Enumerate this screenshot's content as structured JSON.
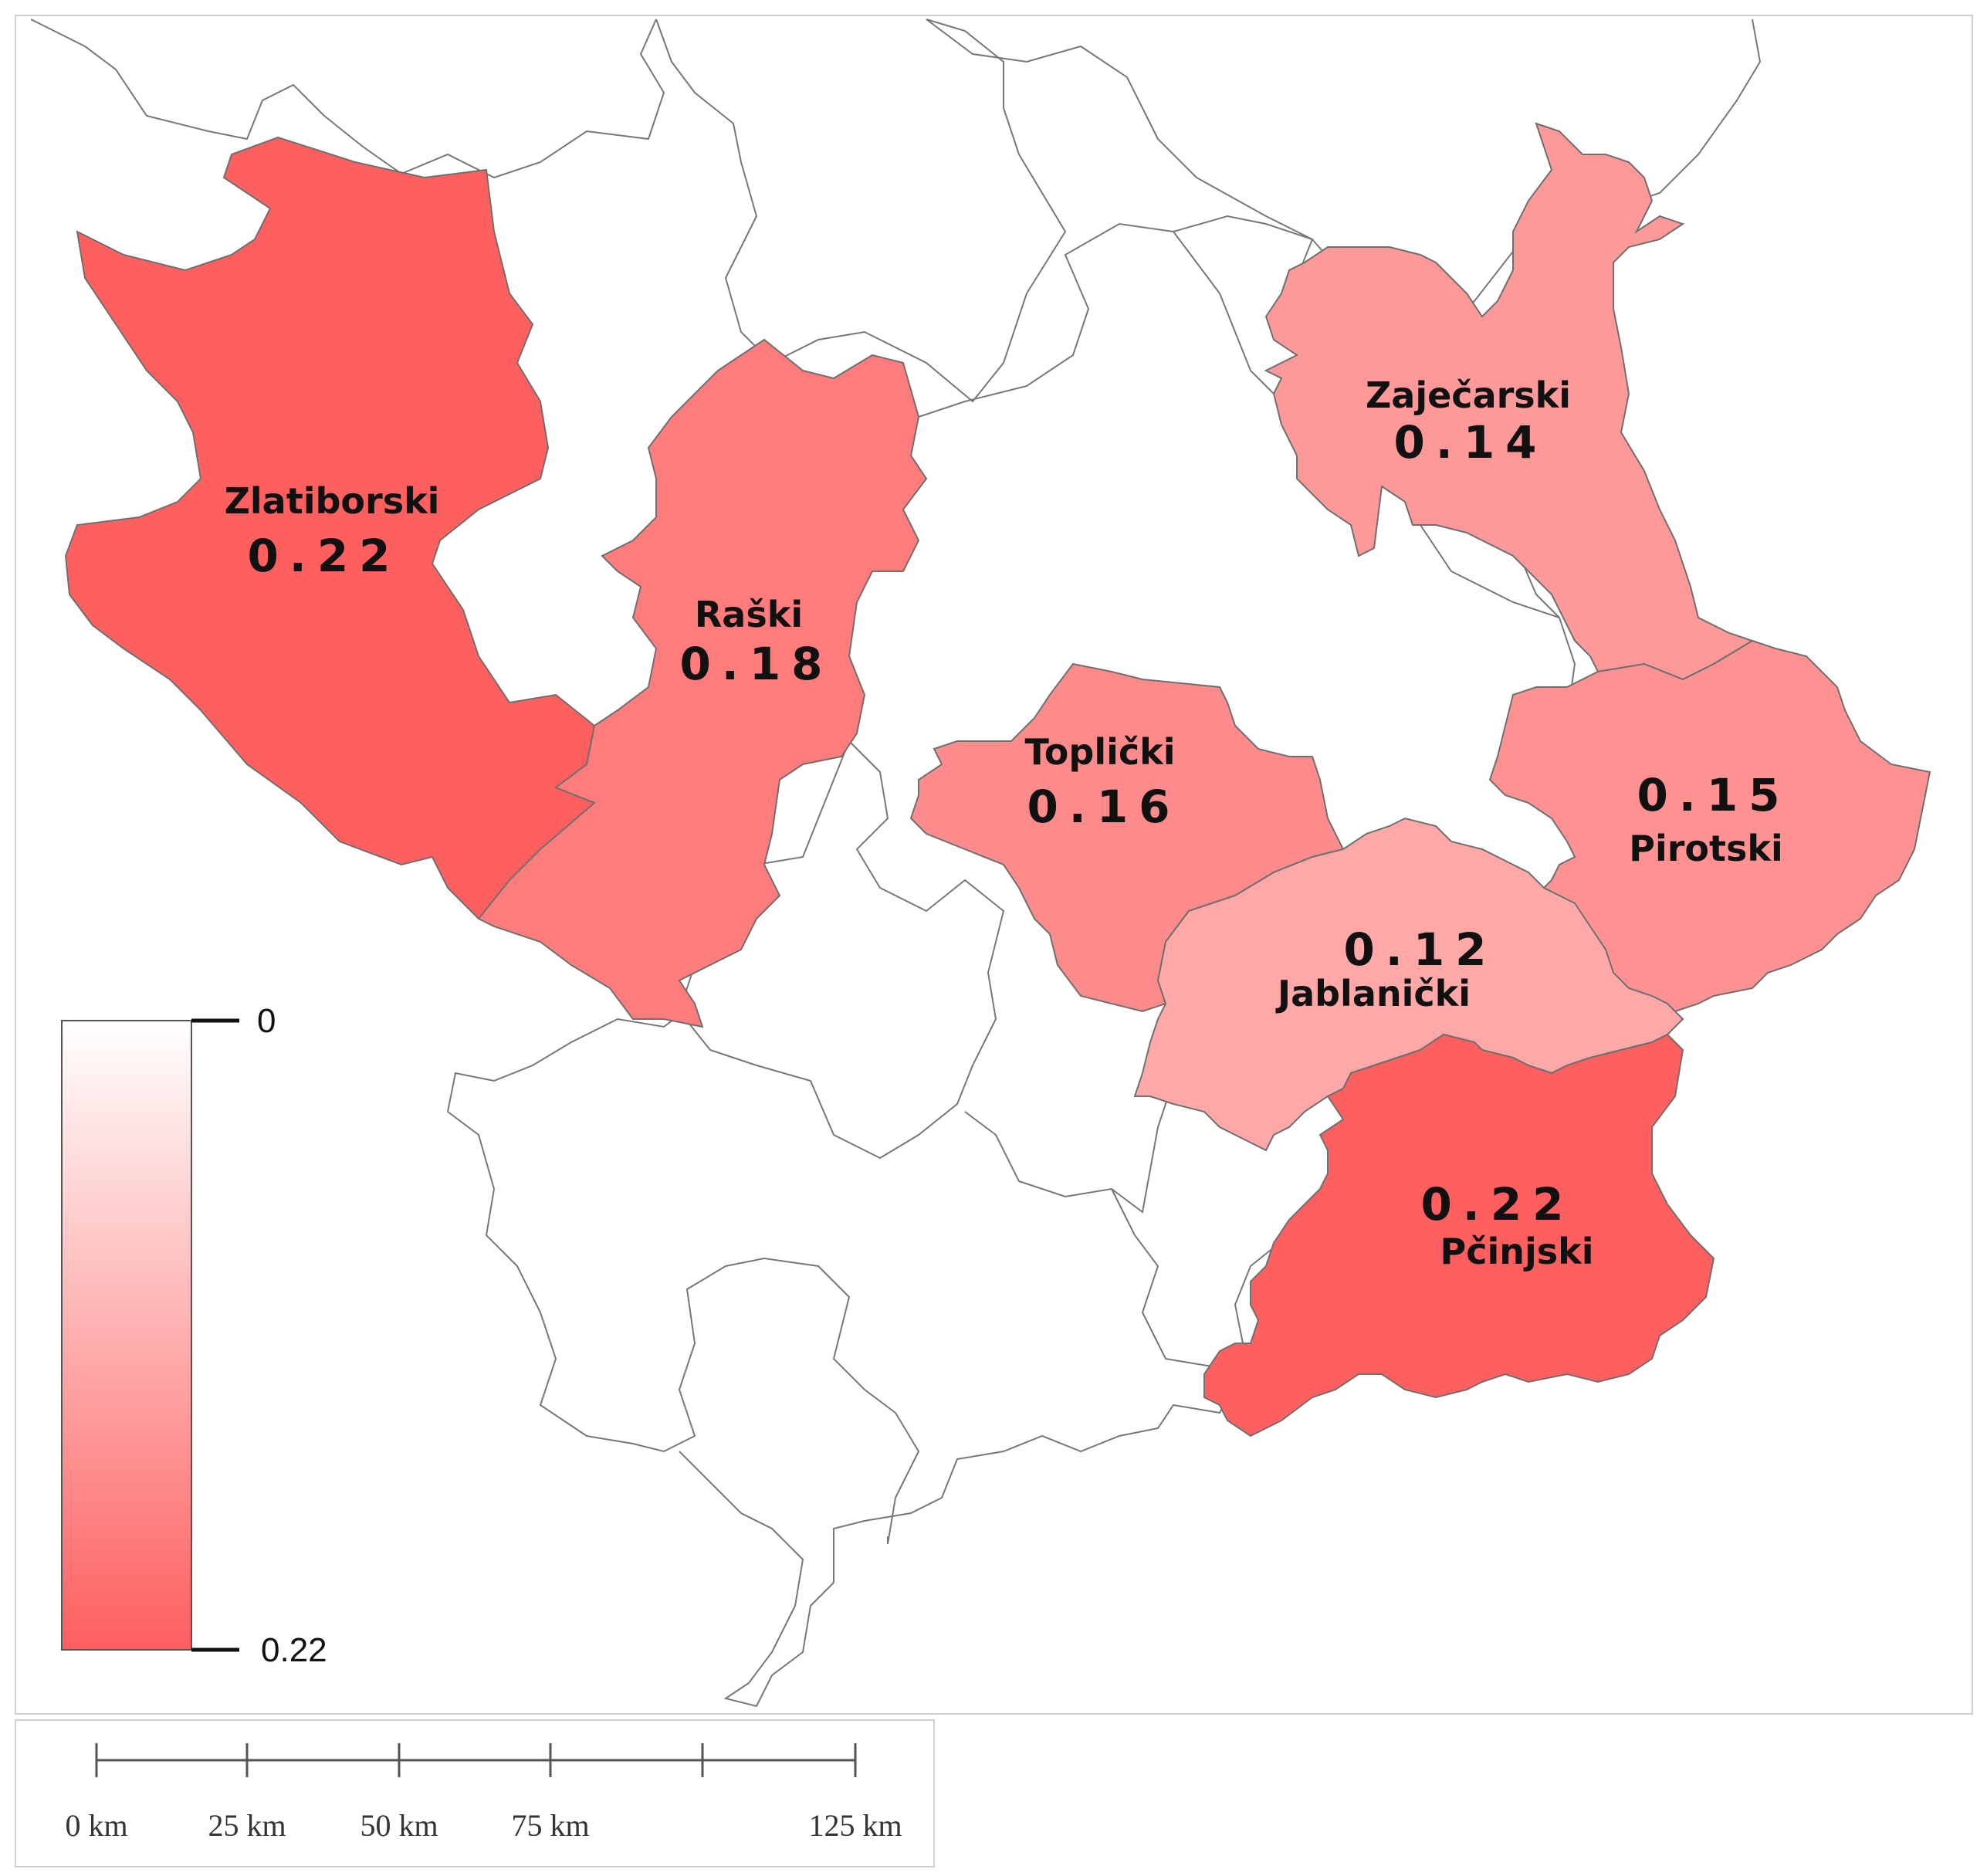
{
  "colors": {
    "low": "#ffffff",
    "high": "#fe5f5f",
    "outline": "#777777"
  },
  "legend": {
    "min_label": "0",
    "max_label": "0.22",
    "min_value": 0,
    "max_value": 0.22
  },
  "regions": [
    {
      "id": "zlatiborski",
      "name": "Zlatiborski",
      "value_label": "0.22",
      "value": 0.22
    },
    {
      "id": "raski",
      "name": "Raški",
      "value_label": "0.18",
      "value": 0.18
    },
    {
      "id": "toplicki",
      "name": "Toplički",
      "value_label": "0.16",
      "value": 0.16
    },
    {
      "id": "zajecarski",
      "name": "Zaječarski",
      "value_label": "0.14",
      "value": 0.14
    },
    {
      "id": "pirotski",
      "name": "Pirotski",
      "value_label": "0.15",
      "value": 0.15
    },
    {
      "id": "jablanicki",
      "name": "Jablanički",
      "value_label": "0.12",
      "value": 0.12
    },
    {
      "id": "pcinjski",
      "name": "Pčinjski",
      "value_label": "0.22",
      "value": 0.22
    }
  ],
  "scale_bar": {
    "ticks": [
      "0 km",
      "25 km",
      "50 km",
      "75 km",
      "125 km"
    ]
  }
}
